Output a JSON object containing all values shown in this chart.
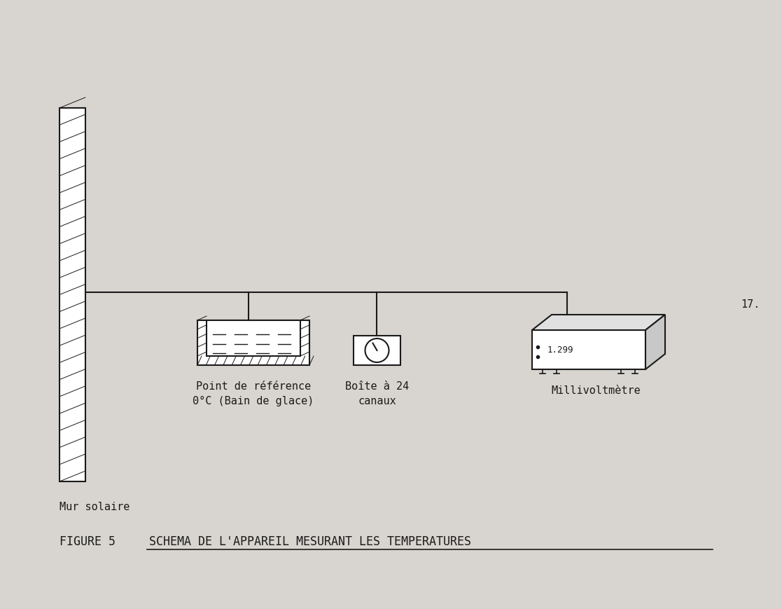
{
  "bg_color": "#d8d5d0",
  "line_color": "#1a1a1a",
  "page_number": "17.",
  "label_wall": "Mur solaire",
  "label_bath": "Point de référence\n0°C (Bain de glace)",
  "label_box": "Boîte à 24\ncanaux",
  "label_mv": "Millivoltmètre",
  "title_prefix": "FIGURE 5  ",
  "title_main": "SCHEMA DE L'APPAREIL MESURANT LES TEMPERATURES",
  "font_size_labels": 11,
  "font_size_title": 12,
  "font_family": "monospace"
}
